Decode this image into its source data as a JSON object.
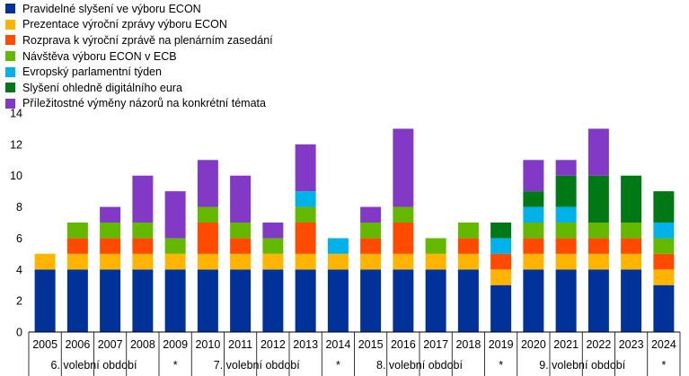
{
  "chart_data": {
    "type": "bar",
    "stacked": true,
    "categories": [
      "2005",
      "2006",
      "2007",
      "2008",
      "2009",
      "2010",
      "2011",
      "2012",
      "2013",
      "2014",
      "2015",
      "2016",
      "2017",
      "2018",
      "2019",
      "2020",
      "2021",
      "2022",
      "2023",
      "2024"
    ],
    "series": [
      {
        "name": "Pravidelné slyšení ve výboru ECON",
        "color": "#003299",
        "values": [
          4,
          4,
          4,
          4,
          4,
          4,
          4,
          4,
          4,
          4,
          4,
          4,
          4,
          4,
          3,
          4,
          4,
          4,
          4,
          3
        ]
      },
      {
        "name": "Prezentace výroční zprávy výboru ECON",
        "color": "#ffb400",
        "values": [
          1,
          1,
          1,
          1,
          1,
          1,
          1,
          1,
          1,
          1,
          1,
          1,
          1,
          1,
          1,
          1,
          1,
          1,
          1,
          1
        ]
      },
      {
        "name": "Rozprava k výroční zprávě na plenárním zasedání",
        "color": "#ff4b00",
        "values": [
          0,
          1,
          1,
          1,
          0,
          2,
          1,
          0,
          2,
          0,
          1,
          2,
          0,
          1,
          1,
          1,
          1,
          1,
          1,
          1
        ]
      },
      {
        "name": "Návštěva výboru ECON v ECB",
        "color": "#65b800",
        "values": [
          0,
          1,
          1,
          1,
          1,
          1,
          1,
          1,
          1,
          0,
          1,
          1,
          1,
          1,
          0,
          1,
          1,
          1,
          1,
          1
        ]
      },
      {
        "name": "Evropský parlamentní týden",
        "color": "#00b1ea",
        "values": [
          0,
          0,
          0,
          0,
          0,
          0,
          0,
          0,
          1,
          1,
          0,
          0,
          0,
          0,
          1,
          1,
          1,
          0,
          0,
          1
        ]
      },
      {
        "name": "Slyšení ohledně digitálního eura",
        "color": "#007816",
        "values": [
          0,
          0,
          0,
          0,
          0,
          0,
          0,
          0,
          0,
          0,
          0,
          0,
          0,
          0,
          1,
          1,
          2,
          3,
          3,
          2
        ]
      },
      {
        "name": "Příležitostné výměny názorů na konkrétní témata",
        "color": "#8139c6",
        "values": [
          0,
          0,
          1,
          3,
          3,
          3,
          3,
          1,
          3,
          0,
          1,
          5,
          0,
          0,
          0,
          2,
          1,
          3,
          0,
          0
        ]
      }
    ],
    "ylim": [
      0,
      14
    ],
    "yticks": [
      0,
      2,
      4,
      6,
      8,
      10,
      12,
      14
    ],
    "grid": false,
    "legend_position": "top-left",
    "period_labels": [
      {
        "label": "6. volební období",
        "from": 0,
        "to": 3
      },
      {
        "label": "*",
        "from": 4,
        "to": 4
      },
      {
        "label": "7. volební období",
        "from": 5,
        "to": 8
      },
      {
        "label": "*",
        "from": 9,
        "to": 9
      },
      {
        "label": "8. volební období",
        "from": 10,
        "to": 13
      },
      {
        "label": "*",
        "from": 14,
        "to": 14
      },
      {
        "label": "9. volební období",
        "from": 15,
        "to": 18
      },
      {
        "label": "*",
        "from": 19,
        "to": 19
      }
    ]
  }
}
